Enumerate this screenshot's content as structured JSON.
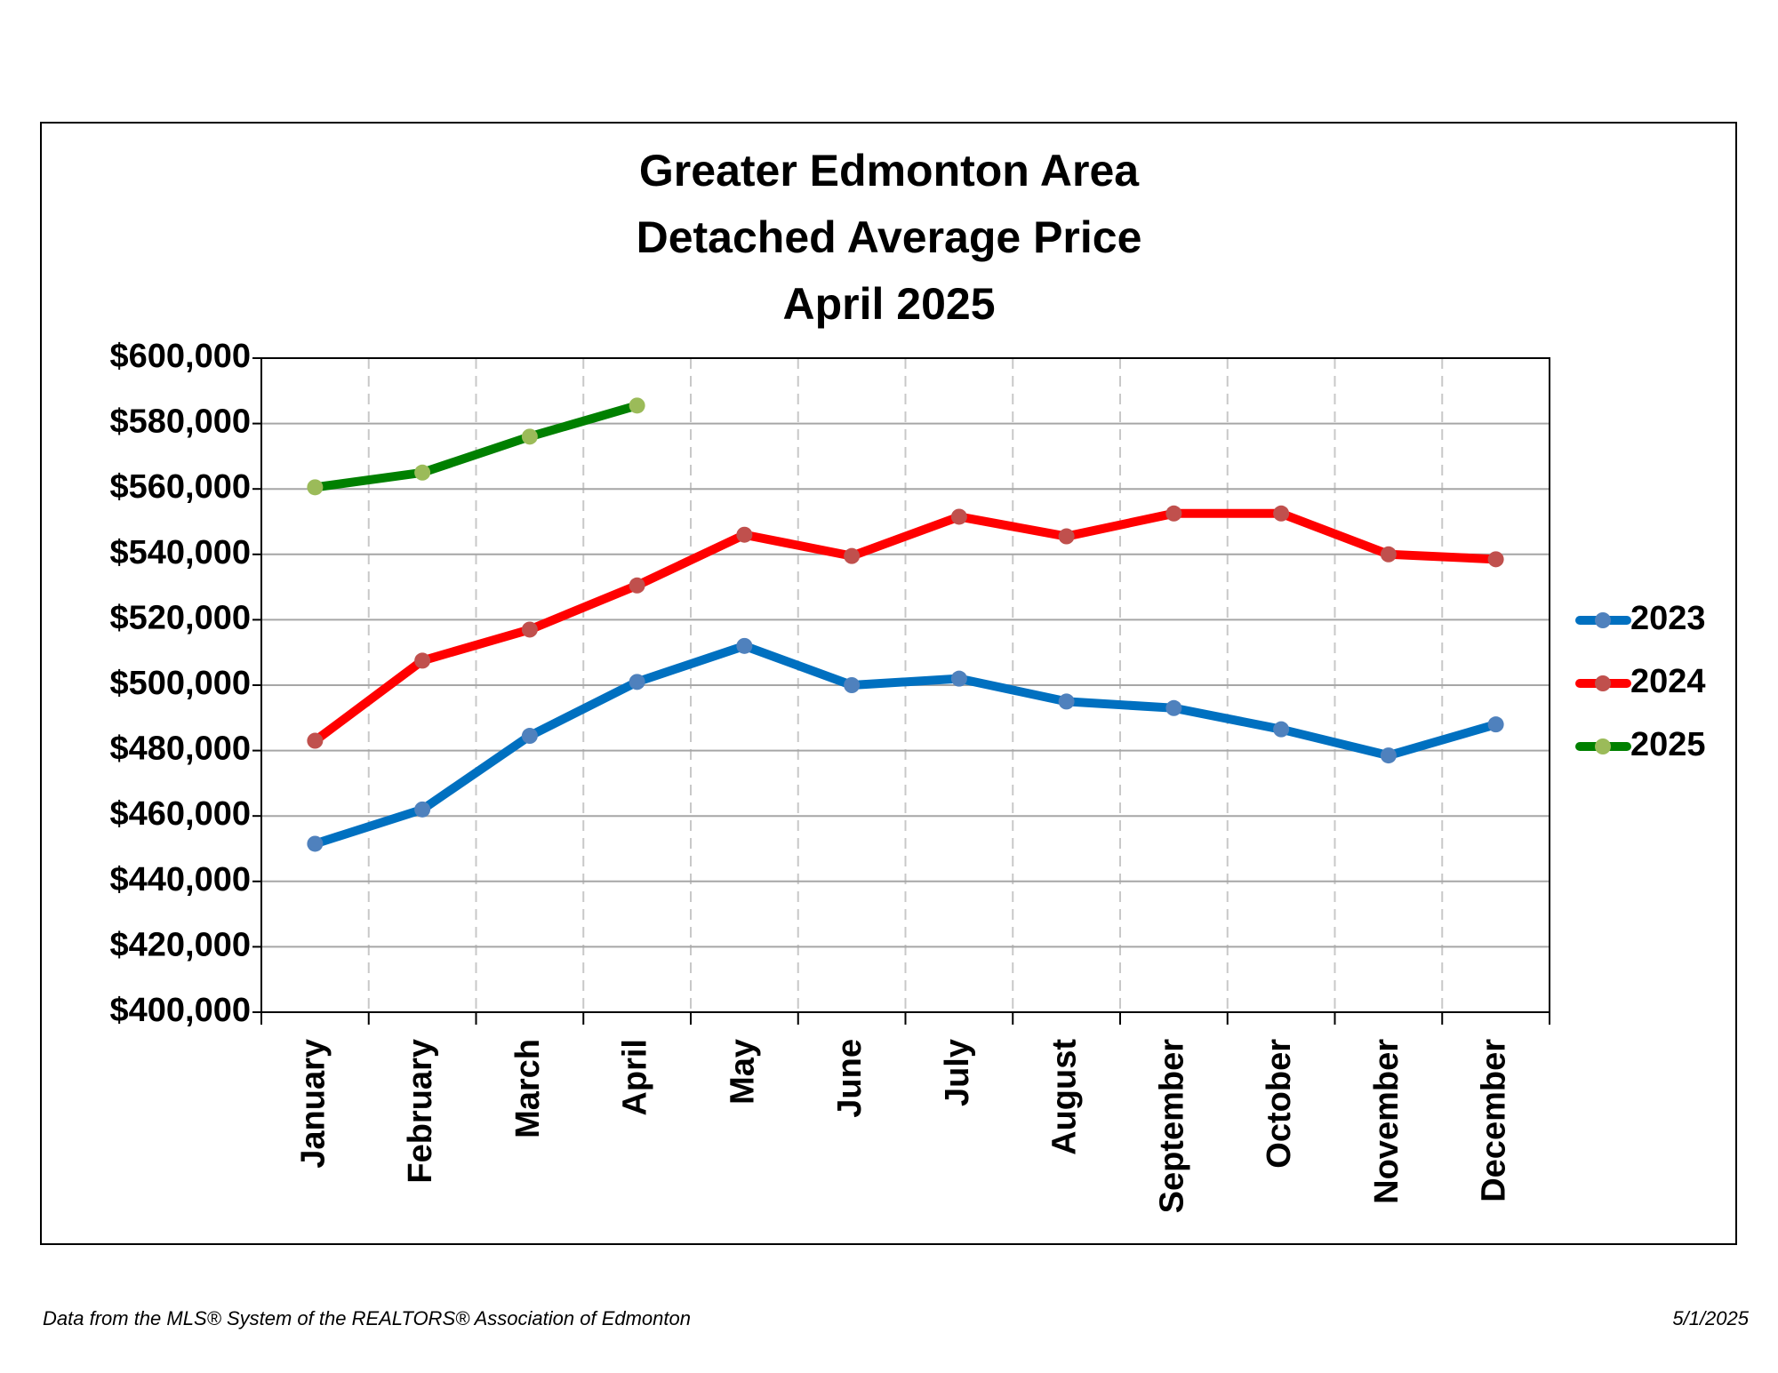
{
  "chart_data": {
    "type": "line",
    "title": [
      "Greater Edmonton Area",
      "Detached Average Price",
      "April 2025"
    ],
    "categories": [
      "January",
      "February",
      "March",
      "April",
      "May",
      "June",
      "July",
      "August",
      "September",
      "October",
      "November",
      "December"
    ],
    "series": [
      {
        "name": "2023",
        "color": "#0070C0",
        "marker_color": "#4F81BD",
        "values": [
          451500,
          462000,
          484500,
          501000,
          512000,
          500000,
          502000,
          495000,
          493000,
          486500,
          478500,
          488000
        ]
      },
      {
        "name": "2024",
        "color": "#FF0000",
        "marker_color": "#C0504D",
        "values": [
          483000,
          507500,
          517000,
          530500,
          546000,
          539500,
          551500,
          545500,
          552500,
          552500,
          540000,
          538500
        ]
      },
      {
        "name": "2025",
        "color": "#008000",
        "marker_color": "#9BBB59",
        "values": [
          560500,
          565000,
          576000,
          585500,
          null,
          null,
          null,
          null,
          null,
          null,
          null,
          null
        ]
      }
    ],
    "ylim": [
      400000,
      600000
    ],
    "yticks": [
      {
        "value": 400000,
        "label": "$400,000"
      },
      {
        "value": 420000,
        "label": "$420,000"
      },
      {
        "value": 440000,
        "label": "$440,000"
      },
      {
        "value": 460000,
        "label": "$460,000"
      },
      {
        "value": 480000,
        "label": "$480,000"
      },
      {
        "value": 500000,
        "label": "$500,000"
      },
      {
        "value": 520000,
        "label": "$520,000"
      },
      {
        "value": 540000,
        "label": "$540,000"
      },
      {
        "value": 560000,
        "label": "$560,000"
      },
      {
        "value": 580000,
        "label": "$580,000"
      },
      {
        "value": 600000,
        "label": "$600,000"
      }
    ],
    "grid": true,
    "legend": "right",
    "source": "Data from the MLS® System of the REALTORS® Association of Edmonton",
    "date": "5/1/2025"
  }
}
